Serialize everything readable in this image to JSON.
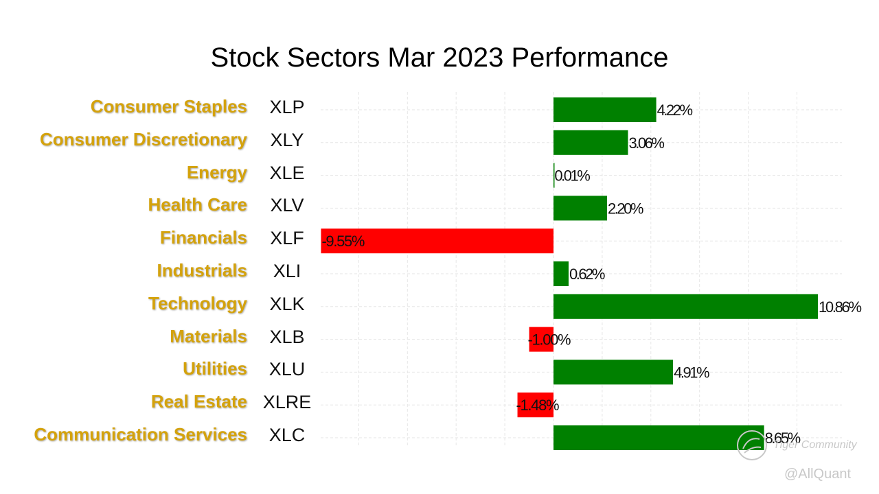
{
  "chart_data": {
    "type": "bar",
    "orientation": "horizontal",
    "title": "Stock Sectors Mar 2023 Performance",
    "categories": [
      "Consumer Staples",
      "Consumer Discretionary",
      "Energy",
      "Health Care",
      "Financials",
      "Industrials",
      "Technology",
      "Materials",
      "Utilities",
      "Real Estate",
      "Communication Services"
    ],
    "tickers": [
      "XLP",
      "XLY",
      "XLE",
      "XLV",
      "XLF",
      "XLI",
      "XLK",
      "XLB",
      "XLU",
      "XLRE",
      "XLC"
    ],
    "values": [
      4.22,
      3.06,
      0.01,
      2.2,
      -9.55,
      0.62,
      10.86,
      -1.0,
      4.91,
      -1.48,
      8.65
    ],
    "value_labels": [
      "4.22%",
      "3.06%",
      "0.01%",
      "2.20%",
      "-9.55%",
      "0.62%",
      "10.86%",
      "-1.00%",
      "4.91%",
      "-1.48%",
      "8.65%"
    ],
    "xlim": [
      -9.55,
      11.7
    ],
    "grid": true,
    "colors": {
      "positive": "#008000",
      "negative": "#ff0000",
      "label": "#d4a20c",
      "grid": "#e6e6e6"
    }
  },
  "watermark": {
    "brand": "Tiger Community",
    "credit": "@AllQuant"
  }
}
